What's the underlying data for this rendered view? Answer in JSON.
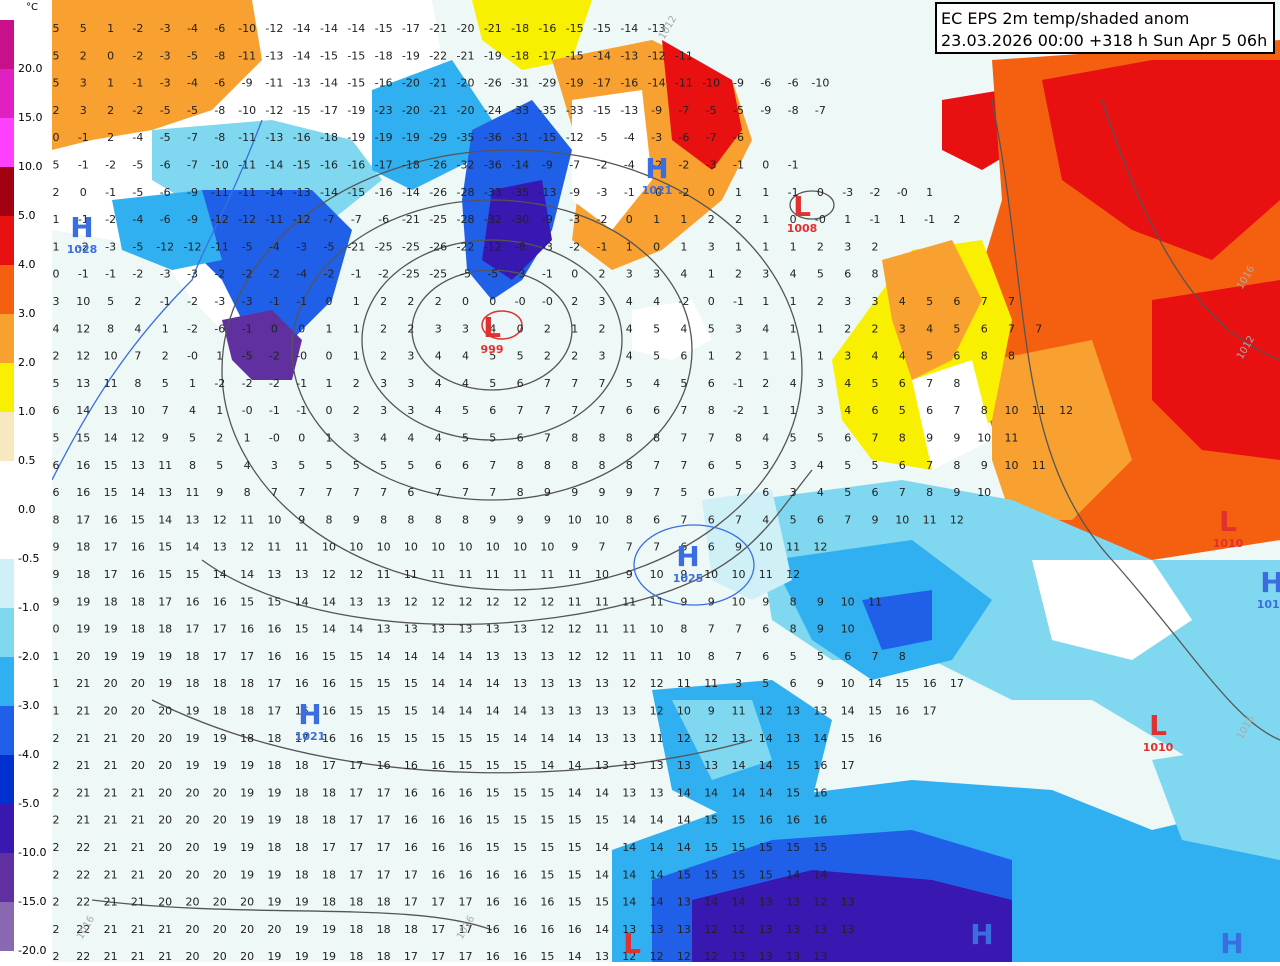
{
  "title": {
    "line1": "EC EPS 2m temp/shaded anom",
    "line2": "23.03.2026 00:00 +318 h Sun Apr 5 06h"
  },
  "legend": {
    "unit": "°C",
    "entries": [
      {
        "label": "20.0",
        "color": "#c8108c"
      },
      {
        "label": "15.0",
        "color": "#e020c0"
      },
      {
        "label": "10.0",
        "color": "#ff40ff"
      },
      {
        "label": "5.0",
        "color": "#a00010"
      },
      {
        "label": "4.0",
        "color": "#e81010"
      },
      {
        "label": "3.0",
        "color": "#f56010"
      },
      {
        "label": "2.0",
        "color": "#f8a030"
      },
      {
        "label": "1.0",
        "color": "#f8f000"
      },
      {
        "label": "0.5",
        "color": "#f8e8c0"
      },
      {
        "label": "0.0",
        "color": "#ffffff"
      },
      {
        "label": "-0.5",
        "color": "#ffffff"
      },
      {
        "label": "-1.0",
        "color": "#d0f0f8"
      },
      {
        "label": "-2.0",
        "color": "#80d8f0"
      },
      {
        "label": "-3.0",
        "color": "#30b0f0"
      },
      {
        "label": "-4.0",
        "color": "#2060e8"
      },
      {
        "label": "-5.0",
        "color": "#0030d0"
      },
      {
        "label": "-10.0",
        "color": "#3818b0"
      },
      {
        "label": "-15.0",
        "color": "#6030a0"
      },
      {
        "label": "-20.0",
        "color": "#8868b0"
      }
    ]
  },
  "pressure_centers": [
    {
      "type": "L",
      "value": "999"
    },
    {
      "type": "L",
      "value": "1008"
    },
    {
      "type": "L",
      "value": "1010"
    },
    {
      "type": "L",
      "value": "1010"
    },
    {
      "type": "H",
      "value": "1025"
    },
    {
      "type": "H",
      "value": "1021"
    },
    {
      "type": "H",
      "value": "1028"
    },
    {
      "type": "H",
      "value": "1014"
    },
    {
      "type": "H",
      "value": "1021"
    },
    {
      "type": "H",
      "value": ""
    },
    {
      "type": "H",
      "value": ""
    },
    {
      "type": "L",
      "value": ""
    }
  ],
  "isobar_labels": [
    "1012",
    "1016",
    "1012",
    "1016",
    "1016",
    "1016"
  ],
  "grid_rows": [
    "5 5 1 -2 -3 -4 -6 -10 -12 -14 -14 -14 -15 -17 -21 -20 -21 -18 -16 -15 -15 -14 -13",
    "5 2 0 -2 -3 -5 -8 -11 -13 -14 -15 -15 -18 -19 -22 -21 -19 -18 -17 -15 -14 -13 -12 -11",
    "5 3 1 -1 -3 -4 -6 -9 -11 -13 -14 -15 -16 -20 -21 -20 -26 -31 -29 -19 -17 -16 -14 -11 -10 -9 -6 -6 -10",
    "2 3 2 -2 -5 -5 -8 -10 -12 -15 -17 -19 -23 -20 -21 -20 -24 -33 -35 -33 -15 -13 -9 -7 -5 -5 -9 -8 -7",
    "0 -1 2 -4 -5 -7 -8 -11 -13 -16 -18 -19 -19 -19 -29 -35 -36 -31 -15 -12 -5 -4 -3 -6 -7 -6",
    "5 -1 -2 -5 -6 -7 -10 -11 -14 -15 -16 -16 -17 -18 -26 -32 -36 -14 -9 -7 -2 -4 -2 -2 -3 -1 0 -1",
    "2 0 -1 -5 -6 -9 -11 -11 -14 -13 -14 -15 -16 -14 -26 -28 -33 -35 -13 -9 -3 -1 -0 -2 0 1 1 -1 0 -3 -2 -0 1",
    "1 -1 -2 -4 -6 -9 -12 -12 -11 -12 -7 -7 -6 -21 -25 -28 -32 -30 -9 -3 -2 0 1 1 2 2 1 0 -0 1 -1 1 -1 2",
    "1 -2 -3 -5 -12 -12 -11 -5 -4 -3 -5 -21 -25 -25 -26 -22 -12 -8 -3 -2 -1 1 0 1 3 1 1 1 2 3 2",
    "0 -1 -1 -2 -3 -3 -2 -2 -2 -4 -2 -1 -2 -25 -25 -5 -5 -3 -1 0 2 3 3 4 1 2 3 4 5 6 8",
    "3 10 5 2 -1 -2 -3 -3 -1 -1 0 1 2 2 2 0 0 -0 -0 2 3 4 4 -2 0 -1 1 1 2 3 3 4 5 6 7 7",
    "4 12 8 4 1 -2 -6 -1 0 0 1 1 2 2 3 3 4 0 2 1 2 4 5 4 5 3 4 1 1 2 2 3 4 5 6 7 7",
    "2 12 10 7 2 -0 1 -5 -2 -0 0 1 2 3 4 4 5 5 2 2 3 4 5 6 1 2 1 1 1 3 4 4 5 6 8 8",
    "5 13 11 8 5 1 -2 -2 -2 -1 1 2 3 3 4 4 5 6 7 7 7 5 4 5 6 -1 2 4 3 4 5 6 7 8",
    "6 14 13 10 7 4 1 -0 -1 -1 0 2 3 3 4 5 6 7 7 7 7 6 6 7 8 -2 1 1 3 4 6 5 6 7 8 10 11 12",
    "5 15 14 12 9 5 2 1 -0 0 1 3 4 4 4 5 5 6 7 8 8 8 8 7 7 8 4 5 5 6 7 8 9 9 10 11",
    "6 16 15 13 11 8 5 4 3 5 5 5 5 5 6 6 7 8 8 8 8 8 7 7 6 5 3 3 4 5 5 6 7 8 9 10 11",
    "6 16 15 14 13 11 9 8 7 7 7 7 7 6 7 7 7 8 9 9 9 9 7 5 6 7 6 3 4 5 6 7 8 9 10",
    "8 17 16 15 14 13 12 11 10 9 8 9 8 8 8 8 9 9 9 10 10 8 6 7 6 7 4 5 6 7 9 10 11 12",
    "9 18 17 16 15 14 13 12 11 11 10 10 10 10 10 10 10 10 10 9 7 7 7 6 6 9 10 11 12",
    "9 18 17 16 15 15 14 14 13 13 12 12 11 11 11 11 11 11 11 11 10 9 10 9 10 10 11 12",
    "9 19 18 18 17 16 16 15 15 14 14 13 13 12 12 12 12 12 12 11 11 11 11 9 9 10 9 8 9 10 11",
    "0 19 19 18 18 17 17 16 16 15 14 14 13 13 13 13 13 13 12 12 11 11 10 8 7 7 6 8 9 10",
    "1 20 19 19 19 18 17 17 16 16 15 15 14 14 14 14 13 13 13 12 12 11 11 10 8 7 6 5 5 6 7 8",
    "1 21 20 20 19 18 18 18 17 16 16 15 15 15 14 14 14 13 13 13 13 12 12 11 11 3 5 6 9 10 14 15 16 17",
    "1 21 20 20 20 19 18 18 17 16 16 15 15 15 14 14 14 14 13 13 13 13 12 10 9 11 12 13 13 14 15 16 17",
    "2 21 21 20 20 19 19 18 18 17 16 16 15 15 15 15 15 14 14 14 13 13 11 12 12 13 14 13 14 15 16",
    "2 21 21 20 20 19 19 19 18 18 17 17 16 16 16 15 15 15 14 14 13 13 13 13 13 14 14 15 16 17",
    "2 21 21 21 20 20 20 19 19 18 18 17 17 16 16 16 15 15 15 14 14 13 13 14 14 14 14 15 16",
    "2 21 21 21 20 20 20 19 19 18 18 17 17 16 16 16 15 15 15 15 15 14 14 14 15 15 16 16 16",
    "2 22 21 21 20 20 19 19 18 18 17 17 17 16 16 16 15 15 15 15 14 14 14 14 15 15 15 15 15",
    "2 22 21 21 20 20 20 19 19 18 18 17 17 17 16 16 16 16 15 15 14 14 14 15 15 15 15 14 14",
    "2 22 21 21 20 20 20 20 19 19 18 18 18 17 17 17 16 16 16 15 15 14 14 13 14 14 13 13 12 13",
    "2 22 21 21 21 20 20 20 20 19 19 18 18 18 17 17 16 16 16 16 14 13 13 13 12 12 13 13 13 13",
    "2 22 21 21 21 20 20 20 19 19 19 18 18 17 17 17 16 16 15 14 13 12 12 12 12 13 13 13 13",
    "2 22 22 21 21 21 20 20 20 19 19 19 18 18 17 17 16 16 15 13 12 12 12 12 13 13 14 14 15 16"
  ]
}
